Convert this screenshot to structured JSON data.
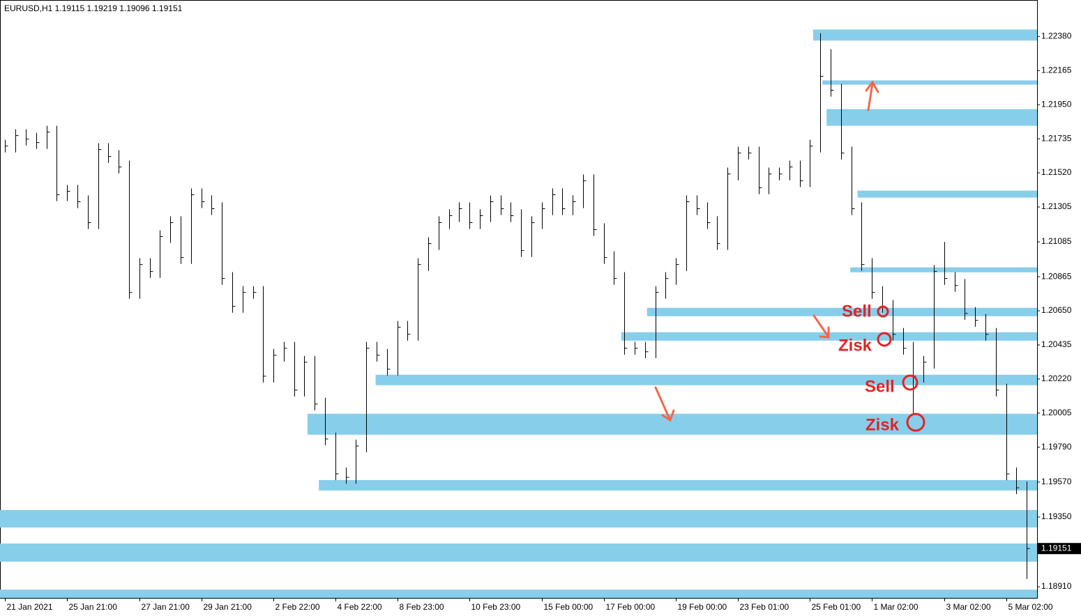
{
  "chart_data": {
    "type": "ohlc",
    "title": "EURUSD,H1  1.19115 1.19219 1.19096 1.19151",
    "bar_color": "#000000",
    "zone_color": "#87ceeb",
    "xlim": [
      -0.5,
      100
    ],
    "ylim": [
      1.1884,
      1.2261
    ],
    "yticks": [
      {
        "value": 1.2238,
        "label": "1.22380"
      },
      1.22165,
      {
        "value": 1.2195,
        "label": "1.21950"
      },
      1.21735,
      {
        "value": 1.2152,
        "label": "1.21520"
      },
      1.21305,
      1.21085,
      1.20865,
      {
        "value": 1.2065,
        "label": "1.20650"
      },
      1.20435,
      {
        "value": 1.2022,
        "label": "1.20220"
      },
      1.20005,
      {
        "value": 1.1979,
        "label": "1.19790"
      },
      {
        "value": 1.1957,
        "label": "1.19570"
      },
      {
        "value": 1.1935,
        "label": "1.19350"
      },
      {
        "value": 1.1891,
        "label": "1.18910"
      }
    ],
    "xticks": [
      {
        "value": 0,
        "label": "21 Jan 2021"
      },
      {
        "value": 6,
        "label": "25 Jan 21:00"
      },
      {
        "value": 13,
        "label": "27 Jan 21:00"
      },
      {
        "value": 19,
        "label": "29 Jan 21:00"
      },
      {
        "value": 26,
        "label": "2 Feb 22:00"
      },
      {
        "value": 32,
        "label": "4 Feb 22:00"
      },
      {
        "value": 38,
        "label": "8 Feb 23:00"
      },
      {
        "value": 45,
        "label": "10 Feb 23:00"
      },
      {
        "value": 52,
        "label": "15 Feb 00:00"
      },
      {
        "value": 58,
        "label": "17 Feb 00:00"
      },
      {
        "value": 65,
        "label": "19 Feb 00:00"
      },
      {
        "value": 71,
        "label": "23 Feb 01:00"
      },
      {
        "value": 78,
        "label": "25 Feb 01:00"
      },
      {
        "value": 84,
        "label": "1 Mar 02:00"
      },
      {
        "value": 91,
        "label": "3 Mar 02:00"
      },
      {
        "value": 97,
        "label": "5 Mar 02:00"
      }
    ],
    "last_price": {
      "value": 1.19151,
      "label": "1.19151"
    },
    "annotations": [
      "Sell",
      "Zisk",
      "Sell",
      "Zisk"
    ],
    "high": [
      1.21729,
      1.21795,
      1.21795,
      1.21773,
      1.21817,
      1.21817,
      1.21444,
      1.21444,
      1.21378,
      1.21707,
      1.21707,
      1.21663,
      1.21597,
      1.20982,
      1.20982,
      1.21158,
      1.21246,
      1.21246,
      1.21422,
      1.21422,
      1.21378,
      1.21334,
      1.20894,
      1.20806,
      1.20806,
      1.20806,
      1.2041,
      1.20454,
      1.20454,
      1.20366,
      1.20366,
      1.20102,
      1.19882,
      1.19662,
      1.19838,
      1.20454,
      1.20454,
      1.2041,
      1.20586,
      1.20586,
      1.20982,
      1.21114,
      1.21246,
      1.2129,
      1.21334,
      1.21334,
      1.2129,
      1.21378,
      1.21378,
      1.21334,
      1.2129,
      1.21246,
      1.21334,
      1.21422,
      1.21422,
      1.21378,
      1.2151,
      1.2151,
      1.21202,
      1.21026,
      1.20894,
      1.20454,
      1.20454,
      1.20806,
      1.20894,
      1.20982,
      1.21378,
      1.21378,
      1.21334,
      1.21246,
      1.21553,
      1.21685,
      1.21685,
      1.21685,
      1.21553,
      1.21553,
      1.21597,
      1.21597,
      1.21729,
      1.224,
      1.223,
      1.22081,
      1.21685,
      1.21334,
      1.20982,
      1.20806,
      1.20718,
      1.20542,
      1.20454,
      1.20366,
      1.20938,
      1.21085,
      1.20894,
      1.2085,
      1.20674,
      1.2063,
      1.20542,
      1.2019,
      1.19662,
      1.19574
    ],
    "low": [
      1.21649,
      1.21649,
      1.21693,
      1.21671,
      1.21671,
      1.21342,
      1.21342,
      1.21298,
      1.21166,
      1.21166,
      1.21583,
      1.21517,
      1.20726,
      1.20726,
      1.20858,
      1.20858,
      1.21078,
      1.20946,
      1.20946,
      1.21298,
      1.21254,
      1.20814,
      1.20638,
      1.20638,
      1.20726,
      1.20198,
      1.20198,
      1.2033,
      1.2011,
      1.2011,
      1.20022,
      1.19802,
      1.19582,
      1.1956,
      1.1956,
      1.19758,
      1.2033,
      1.20242,
      1.20242,
      1.20462,
      1.20462,
      1.20902,
      1.21034,
      1.21166,
      1.2121,
      1.21166,
      1.21166,
      1.2121,
      1.21254,
      1.2121,
      1.2099,
      1.2099,
      1.21166,
      1.21254,
      1.21254,
      1.21254,
      1.21298,
      1.21122,
      1.20946,
      1.20814,
      1.20374,
      1.20374,
      1.20352,
      1.20352,
      1.20726,
      1.20814,
      1.20902,
      1.21254,
      1.21166,
      1.21034,
      1.21034,
      1.21473,
      1.21605,
      1.21386,
      1.21386,
      1.21473,
      1.21473,
      1.2143,
      1.2143,
      1.21649,
      1.22001,
      1.21605,
      1.21254,
      1.20902,
      1.20726,
      1.20638,
      1.20462,
      1.20374,
      1.19998,
      1.20198,
      1.20286,
      1.20814,
      1.2077,
      1.20594,
      1.2055,
      1.20462,
      1.2011,
      1.19582,
      1.19494,
      1.1896
    ],
    "close": [
      1.21689,
      1.21755,
      1.21733,
      1.21711,
      1.21777,
      1.21382,
      1.21404,
      1.21338,
      1.21206,
      1.21667,
      1.21623,
      1.21557,
      1.20766,
      1.20942,
      1.20898,
      1.21118,
      1.21206,
      1.20986,
      1.21382,
      1.21338,
      1.21294,
      1.20854,
      1.20678,
      1.20766,
      1.20766,
      1.20238,
      1.2037,
      1.20414,
      1.2015,
      1.20326,
      1.20062,
      1.19842,
      1.19622,
      1.196,
      1.19798,
      1.20414,
      1.2037,
      1.20282,
      1.20546,
      1.20502,
      1.20942,
      1.21074,
      1.21206,
      1.2125,
      1.21294,
      1.21206,
      1.2125,
      1.21338,
      1.21294,
      1.2125,
      1.2103,
      1.21206,
      1.21294,
      1.21382,
      1.21294,
      1.21338,
      1.2147,
      1.21162,
      1.20986,
      1.20854,
      1.20414,
      1.20414,
      1.20392,
      1.20766,
      1.20854,
      1.20942,
      1.21338,
      1.21294,
      1.21206,
      1.21074,
      1.21513,
      1.21645,
      1.21645,
      1.21426,
      1.21513,
      1.21513,
      1.21557,
      1.2147,
      1.21689,
      1.22129,
      1.22041,
      1.21645,
      1.21294,
      1.20942,
      1.20766,
      1.20678,
      1.20502,
      1.20414,
      1.20238,
      1.20326,
      1.20898,
      1.20854,
      1.2081,
      1.20634,
      1.2059,
      1.20502,
      1.2015,
      1.19622,
      1.19534,
      1.19151
    ],
    "zones": [
      {
        "from": 1.22424,
        "to": 1.22354,
        "start": 78.3
      },
      {
        "from": 1.22103,
        "to": 1.22076,
        "start": 79.2
      },
      {
        "from": 1.21922,
        "to": 1.21817,
        "start": 79.6
      },
      {
        "from": 1.21408,
        "to": 1.21364,
        "start": 82.6
      },
      {
        "from": 1.20924,
        "to": 1.20893,
        "start": 81.9
      },
      {
        "from": 1.20669,
        "to": 1.20616,
        "start": 62.2
      },
      {
        "from": 1.20515,
        "to": 1.20462,
        "start": 59.7
      },
      {
        "from": 1.20247,
        "to": 1.20181,
        "start": 35.9
      },
      {
        "from": 1.20001,
        "to": 1.19869,
        "start": 29.3
      },
      {
        "from": 1.19583,
        "to": 1.19517,
        "start": 30.4
      },
      {
        "from": 1.19394,
        "to": 1.19284,
        "start": -0.5
      },
      {
        "from": 1.19183,
        "to": 1.19068,
        "start": -0.5
      },
      {
        "from": 1.18892,
        "to": 1.1884,
        "start": -0.5
      }
    ]
  }
}
